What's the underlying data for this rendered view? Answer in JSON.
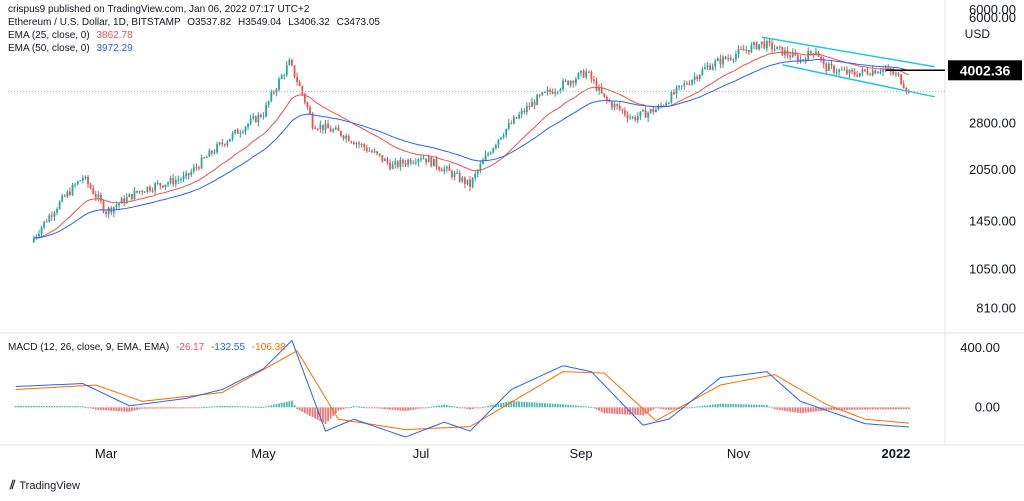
{
  "header": {
    "author": "crispus9",
    "published": "published on TradingView.com, Jan 06, 2022 07:17 UTC+2",
    "symbol": "Ethereum / U.S. Dollar, 1D, BITSTAMP",
    "ohlc": {
      "O": "O3537.82",
      "H": "H3549.04",
      "L": "L3406.32",
      "C": "C3473.05"
    },
    "ema25": {
      "label": "EMA (25, close, 0)",
      "value": "3862.78"
    },
    "ema50": {
      "label": "EMA (50, close, 0)",
      "value": "3972.29"
    },
    "macd": {
      "label": "MACD (12, 26, close, 9, EMA, EMA)",
      "v1": "-26.17",
      "v2": "-132.55",
      "v3": "-106.38"
    }
  },
  "watermark": "TradingView",
  "price_axis": {
    "currency": "USD",
    "top_label": "6000.00",
    "current_price": "4002.36"
  },
  "colors": {
    "bull": "#26a69a",
    "bear": "#ef5350",
    "ema25": "#ef5350",
    "ema50": "#2962ff",
    "channel": "#26c6da",
    "macd_line": "#2962ff",
    "signal_line": "#ff6d00",
    "hist_pos": "#26a69a",
    "hist_neg": "#ef5350",
    "label_bg": "#000000"
  },
  "chart_data": [
    {
      "type": "candlestick",
      "series_name": "Ethereum / U.S. Dollar",
      "scale": "log",
      "y_ticks": [
        810,
        1050,
        1450,
        2050,
        2800,
        4002.36,
        6000
      ],
      "y_tick_labels": [
        "810.00",
        "1050.00",
        "1450.00",
        "2050.00",
        "2800.00",
        "4002.36",
        "6000.00"
      ],
      "x_labels": [
        "Mar",
        "May",
        "Jul",
        "Sep",
        "Nov",
        "2022"
      ],
      "ylim": [
        700,
        6000
      ],
      "key_points": [
        {
          "date": "2021-02-01",
          "close": 1300
        },
        {
          "date": "2021-02-20",
          "close": 1950
        },
        {
          "date": "2021-03-01",
          "close": 1550
        },
        {
          "date": "2021-03-15",
          "close": 1800
        },
        {
          "date": "2021-04-01",
          "close": 1950
        },
        {
          "date": "2021-04-15",
          "close": 2450
        },
        {
          "date": "2021-05-01",
          "close": 3000
        },
        {
          "date": "2021-05-11",
          "close": 4200
        },
        {
          "date": "2021-05-20",
          "close": 2800
        },
        {
          "date": "2021-06-01",
          "close": 2600
        },
        {
          "date": "2021-06-20",
          "close": 2100
        },
        {
          "date": "2021-07-01",
          "close": 2250
        },
        {
          "date": "2021-07-20",
          "close": 1850
        },
        {
          "date": "2021-08-01",
          "close": 2600
        },
        {
          "date": "2021-08-15",
          "close": 3300
        },
        {
          "date": "2021-09-03",
          "close": 3950
        },
        {
          "date": "2021-09-10",
          "close": 3300
        },
        {
          "date": "2021-09-21",
          "close": 2900
        },
        {
          "date": "2021-10-01",
          "close": 3100
        },
        {
          "date": "2021-10-20",
          "close": 4100
        },
        {
          "date": "2021-11-10",
          "close": 4800
        },
        {
          "date": "2021-11-25",
          "close": 4300
        },
        {
          "date": "2021-12-01",
          "close": 4600
        },
        {
          "date": "2021-12-04",
          "close": 4100
        },
        {
          "date": "2021-12-15",
          "close": 3900
        },
        {
          "date": "2021-12-27",
          "close": 4050
        },
        {
          "date": "2022-01-02",
          "close": 3830
        },
        {
          "date": "2022-01-06",
          "close": 3473.05
        }
      ],
      "horizontal_line": 4002.36,
      "overlays": [
        "EMA (25, close, 0)",
        "EMA (50, close, 0)"
      ],
      "descending_channel": {
        "start_date": "2021-11-10",
        "end_date": "2022-01-06"
      }
    },
    {
      "type": "line",
      "series_name": "MACD (12, 26, close, 9, EMA, EMA)",
      "y_ticks": [
        0,
        400
      ],
      "y_tick_labels": [
        "0.00",
        "400.00"
      ],
      "ylim": [
        -220,
        480
      ],
      "series": [
        {
          "name": "MACD",
          "key_points": [
            {
              "date": "2021-01-25",
              "value": 140
            },
            {
              "date": "2021-02-20",
              "value": 160
            },
            {
              "date": "2021-03-10",
              "value": 10
            },
            {
              "date": "2021-04-01",
              "value": 60
            },
            {
              "date": "2021-04-15",
              "value": 120
            },
            {
              "date": "2021-05-01",
              "value": 260
            },
            {
              "date": "2021-05-12",
              "value": 450
            },
            {
              "date": "2021-05-25",
              "value": -160
            },
            {
              "date": "2021-06-05",
              "value": -80
            },
            {
              "date": "2021-06-25",
              "value": -200
            },
            {
              "date": "2021-07-10",
              "value": -100
            },
            {
              "date": "2021-07-20",
              "value": -160
            },
            {
              "date": "2021-08-05",
              "value": 120
            },
            {
              "date": "2021-08-25",
              "value": 280
            },
            {
              "date": "2021-09-05",
              "value": 240
            },
            {
              "date": "2021-09-25",
              "value": -120
            },
            {
              "date": "2021-10-05",
              "value": -80
            },
            {
              "date": "2021-10-25",
              "value": 200
            },
            {
              "date": "2021-11-12",
              "value": 240
            },
            {
              "date": "2021-11-25",
              "value": 40
            },
            {
              "date": "2021-12-05",
              "value": -20
            },
            {
              "date": "2021-12-20",
              "value": -110
            },
            {
              "date": "2022-01-06",
              "value": -132.55
            }
          ]
        },
        {
          "name": "Signal",
          "key_points": [
            {
              "date": "2021-01-25",
              "value": 120
            },
            {
              "date": "2021-02-25",
              "value": 150
            },
            {
              "date": "2021-03-15",
              "value": 40
            },
            {
              "date": "2021-04-15",
              "value": 100
            },
            {
              "date": "2021-05-14",
              "value": 380
            },
            {
              "date": "2021-05-30",
              "value": -80
            },
            {
              "date": "2021-06-25",
              "value": -150
            },
            {
              "date": "2021-07-20",
              "value": -130
            },
            {
              "date": "2021-08-25",
              "value": 240
            },
            {
              "date": "2021-09-10",
              "value": 230
            },
            {
              "date": "2021-09-30",
              "value": -90
            },
            {
              "date": "2021-10-25",
              "value": 150
            },
            {
              "date": "2021-11-15",
              "value": 220
            },
            {
              "date": "2021-12-05",
              "value": 20
            },
            {
              "date": "2021-12-20",
              "value": -80
            },
            {
              "date": "2022-01-06",
              "value": -106.38
            }
          ]
        }
      ]
    }
  ]
}
